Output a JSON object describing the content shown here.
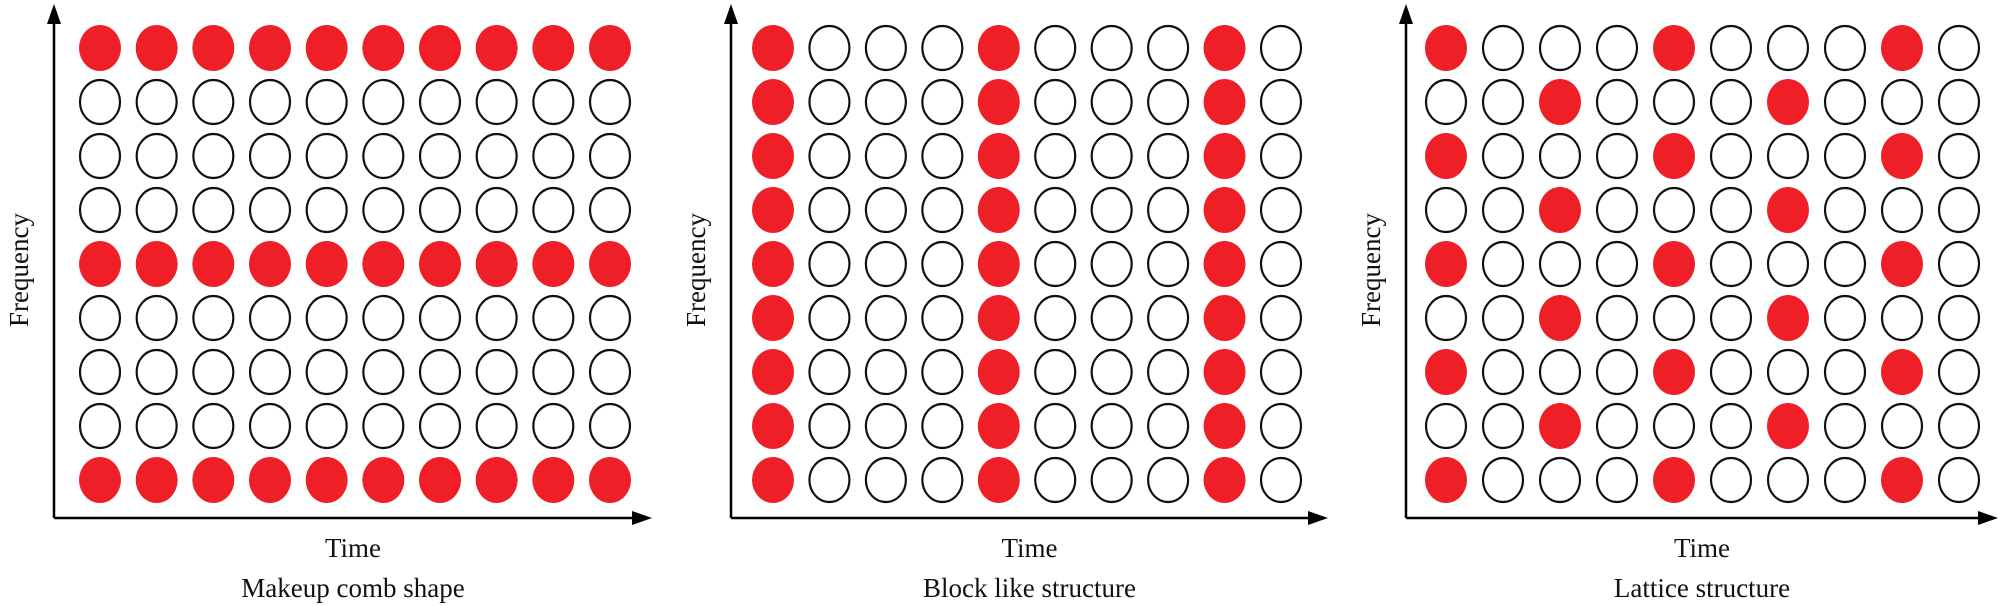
{
  "colors": {
    "filled": "#ee1f26",
    "outline": "#111111",
    "axis": "#000000"
  },
  "grid": {
    "rows": 9,
    "cols": 10
  },
  "panels": [
    {
      "y_label": "Frequency",
      "x_label": "Time",
      "caption": "Makeup comb shape",
      "filled_rows_top_to_bottom": [
        [
          0,
          1,
          2,
          3,
          4,
          5,
          6,
          7,
          8,
          9
        ],
        [],
        [],
        [],
        [
          0,
          1,
          2,
          3,
          4,
          5,
          6,
          7,
          8,
          9
        ],
        [],
        [],
        [],
        [
          0,
          1,
          2,
          3,
          4,
          5,
          6,
          7,
          8,
          9
        ]
      ]
    },
    {
      "y_label": "Frequency",
      "x_label": "Time",
      "caption": "Block like structure",
      "filled_rows_top_to_bottom": [
        [
          0,
          4,
          8
        ],
        [
          0,
          4,
          8
        ],
        [
          0,
          4,
          8
        ],
        [
          0,
          4,
          8
        ],
        [
          0,
          4,
          8
        ],
        [
          0,
          4,
          8
        ],
        [
          0,
          4,
          8
        ],
        [
          0,
          4,
          8
        ],
        [
          0,
          4,
          8
        ]
      ]
    },
    {
      "y_label": "Frequency",
      "x_label": "Time",
      "caption": "Lattice structure",
      "filled_rows_top_to_bottom": [
        [
          0,
          4,
          8
        ],
        [
          2,
          6
        ],
        [
          0,
          4,
          8
        ],
        [
          2,
          6
        ],
        [
          0,
          4,
          8
        ],
        [
          2,
          6
        ],
        [
          0,
          4,
          8
        ],
        [
          2,
          6
        ],
        [
          0,
          4,
          8
        ]
      ]
    }
  ]
}
